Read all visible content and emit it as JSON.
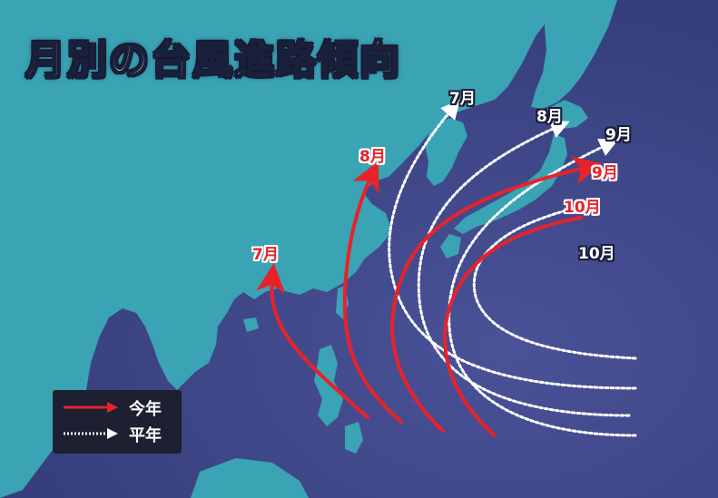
{
  "title": "月別の台風進路傾向",
  "colors": {
    "ocean": "#3e4a86",
    "land": "#3aa3b4",
    "this_year": "#e8222a",
    "average": "#ffffff"
  },
  "labels": {
    "this_year": [
      "7月",
      "8月",
      "9月",
      "10月"
    ],
    "average": [
      "7月",
      "8月",
      "9月",
      "10月"
    ]
  },
  "legend": {
    "this_year_label": "今年",
    "average_label": "平年"
  }
}
